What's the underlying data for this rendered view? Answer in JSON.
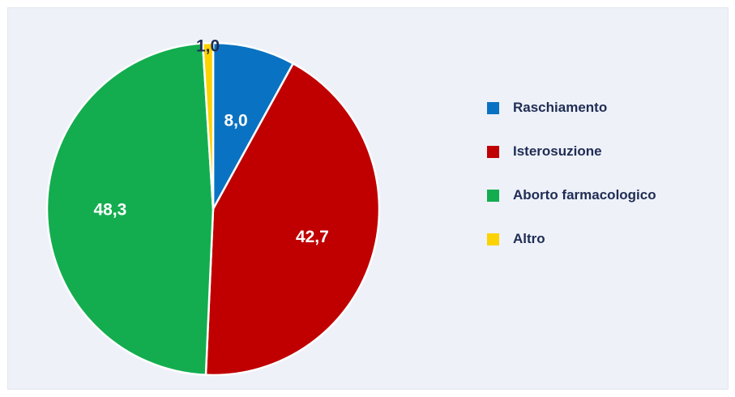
{
  "chart_data": {
    "type": "pie",
    "title": "",
    "slices": [
      {
        "label": "Raschiamento",
        "value": 8.0,
        "display": "8,0",
        "color": "#0a72c2",
        "label_color": "#ffffff"
      },
      {
        "label": "Isterosuzione",
        "value": 42.7,
        "display": "42,7",
        "color": "#c00000",
        "label_color": "#ffffff"
      },
      {
        "label": "Aborto farmacologico",
        "value": 48.3,
        "display": "48,3",
        "color": "#13ad4f",
        "label_color": "#ffffff"
      },
      {
        "label": "Altro",
        "value": 1.0,
        "display": "1,0",
        "color": "#fcd200",
        "label_color": "#1f2d54"
      }
    ],
    "start_angle_deg": 0,
    "direction": "clockwise",
    "legend_position": "right",
    "legend_text_color": "#1f2d54",
    "separator_color": "#ffffff",
    "background_color": "#eef1f8"
  }
}
